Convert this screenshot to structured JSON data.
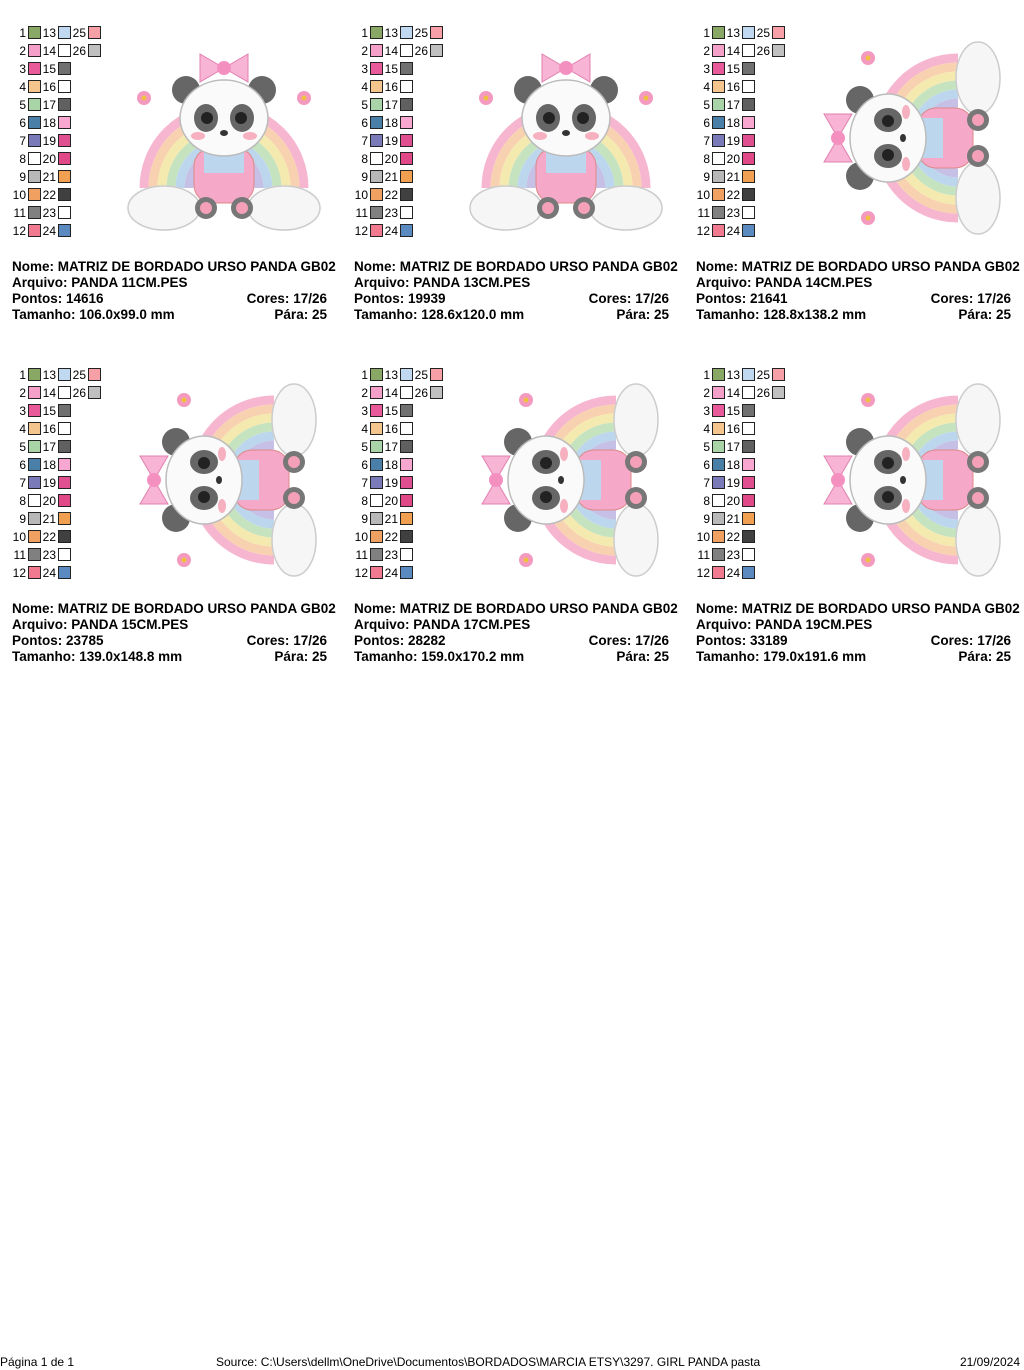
{
  "labels": {
    "name": "Nome:",
    "file": "Arquivo:",
    "stitches": "Pontos:",
    "colors": "Cores:",
    "size": "Tamanho:",
    "stops": "Pára:"
  },
  "swatches": [
    {
      "n": 1,
      "color": "#8aa865"
    },
    {
      "n": 2,
      "color": "#f4a0c8"
    },
    {
      "n": 3,
      "color": "#e85a9a"
    },
    {
      "n": 4,
      "color": "#f5c58e"
    },
    {
      "n": 5,
      "color": "#a8d4a8"
    },
    {
      "n": 6,
      "color": "#4a7fa8"
    },
    {
      "n": 7,
      "color": "#7a7ab8"
    },
    {
      "n": 8,
      "color": "#ffffff"
    },
    {
      "n": 9,
      "color": "#b8b8b8"
    },
    {
      "n": 10,
      "color": "#f0a060"
    },
    {
      "n": 11,
      "color": "#808080"
    },
    {
      "n": 12,
      "color": "#f27a90"
    },
    {
      "n": 13,
      "color": "#c0d8f0"
    },
    {
      "n": 14,
      "color": "#ffffff"
    },
    {
      "n": 15,
      "color": "#707070"
    },
    {
      "n": 16,
      "color": "#ffffff"
    },
    {
      "n": 17,
      "color": "#606060"
    },
    {
      "n": 18,
      "color": "#f8a8d0"
    },
    {
      "n": 19,
      "color": "#e05090"
    },
    {
      "n": 20,
      "color": "#e04888"
    },
    {
      "n": 21,
      "color": "#f0a050"
    },
    {
      "n": 22,
      "color": "#404040"
    },
    {
      "n": 23,
      "color": "#ffffff"
    },
    {
      "n": 24,
      "color": "#5a8ac0"
    },
    {
      "n": 25,
      "color": "#f8a0a8"
    },
    {
      "n": 26,
      "color": "#c0c0c0"
    }
  ],
  "designs": [
    {
      "name": "MATRIZ DE BORDADO URSO PANDA GB02",
      "file": "PANDA 11CM.PES",
      "stitches": 14616,
      "colors": "17/26",
      "size": "106.0x99.0 mm",
      "stops": 25
    },
    {
      "name": "MATRIZ DE BORDADO URSO PANDA GB02",
      "file": "PANDA 13CM.PES",
      "stitches": 19939,
      "colors": "17/26",
      "size": "128.6x120.0 mm",
      "stops": 25
    },
    {
      "name": "MATRIZ DE BORDADO URSO PANDA GB02",
      "file": "PANDA 14CM.PES",
      "stitches": 21641,
      "colors": "17/26",
      "size": "128.8x138.2 mm",
      "stops": 25
    },
    {
      "name": "MATRIZ DE BORDADO URSO PANDA GB02",
      "file": "PANDA 15CM.PES",
      "stitches": 23785,
      "colors": "17/26",
      "size": "139.0x148.8 mm",
      "stops": 25
    },
    {
      "name": "MATRIZ DE BORDADO URSO PANDA GB02",
      "file": "PANDA 17CM.PES",
      "stitches": 28282,
      "colors": "17/26",
      "size": "159.0x170.2 mm",
      "stops": 25
    },
    {
      "name": "MATRIZ DE BORDADO URSO PANDA GB02",
      "file": "PANDA 19CM.PES",
      "stitches": 33189,
      "colors": "17/26",
      "size": "179.0x191.6 mm",
      "stops": 25
    }
  ],
  "footer": {
    "page": "Página 1 de 1",
    "source": "Source: C:\\Users\\dellm\\OneDrive\\Documentos\\BORDADOS\\MARCIA ETSY\\3297. GIRL PANDA pasta",
    "date": "21/09/2024"
  }
}
